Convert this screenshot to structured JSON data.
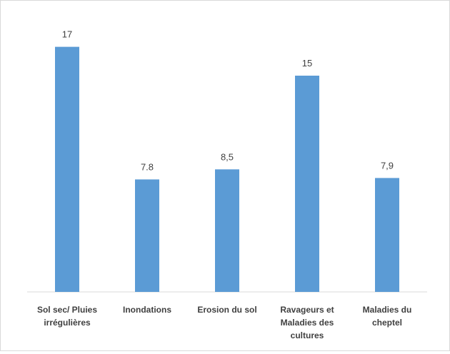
{
  "chart_data": {
    "type": "bar",
    "title": "",
    "xlabel": "",
    "ylabel": "",
    "ylim": [
      0,
      20
    ],
    "grid": false,
    "legend": "none",
    "bar_color": "#5b9bd5",
    "categories": [
      [
        "Sol sec/ Pluies",
        "irrégulières"
      ],
      [
        "Inondations"
      ],
      [
        "Erosion du sol"
      ],
      [
        "Ravageurs et",
        "Maladies des",
        "cultures"
      ],
      [
        "Maladies du",
        "cheptel"
      ]
    ],
    "values": [
      17,
      7.8,
      8.5,
      15,
      7.9
    ],
    "data_labels": [
      "17",
      "7.8",
      "8,5",
      "15",
      "7,9"
    ]
  }
}
